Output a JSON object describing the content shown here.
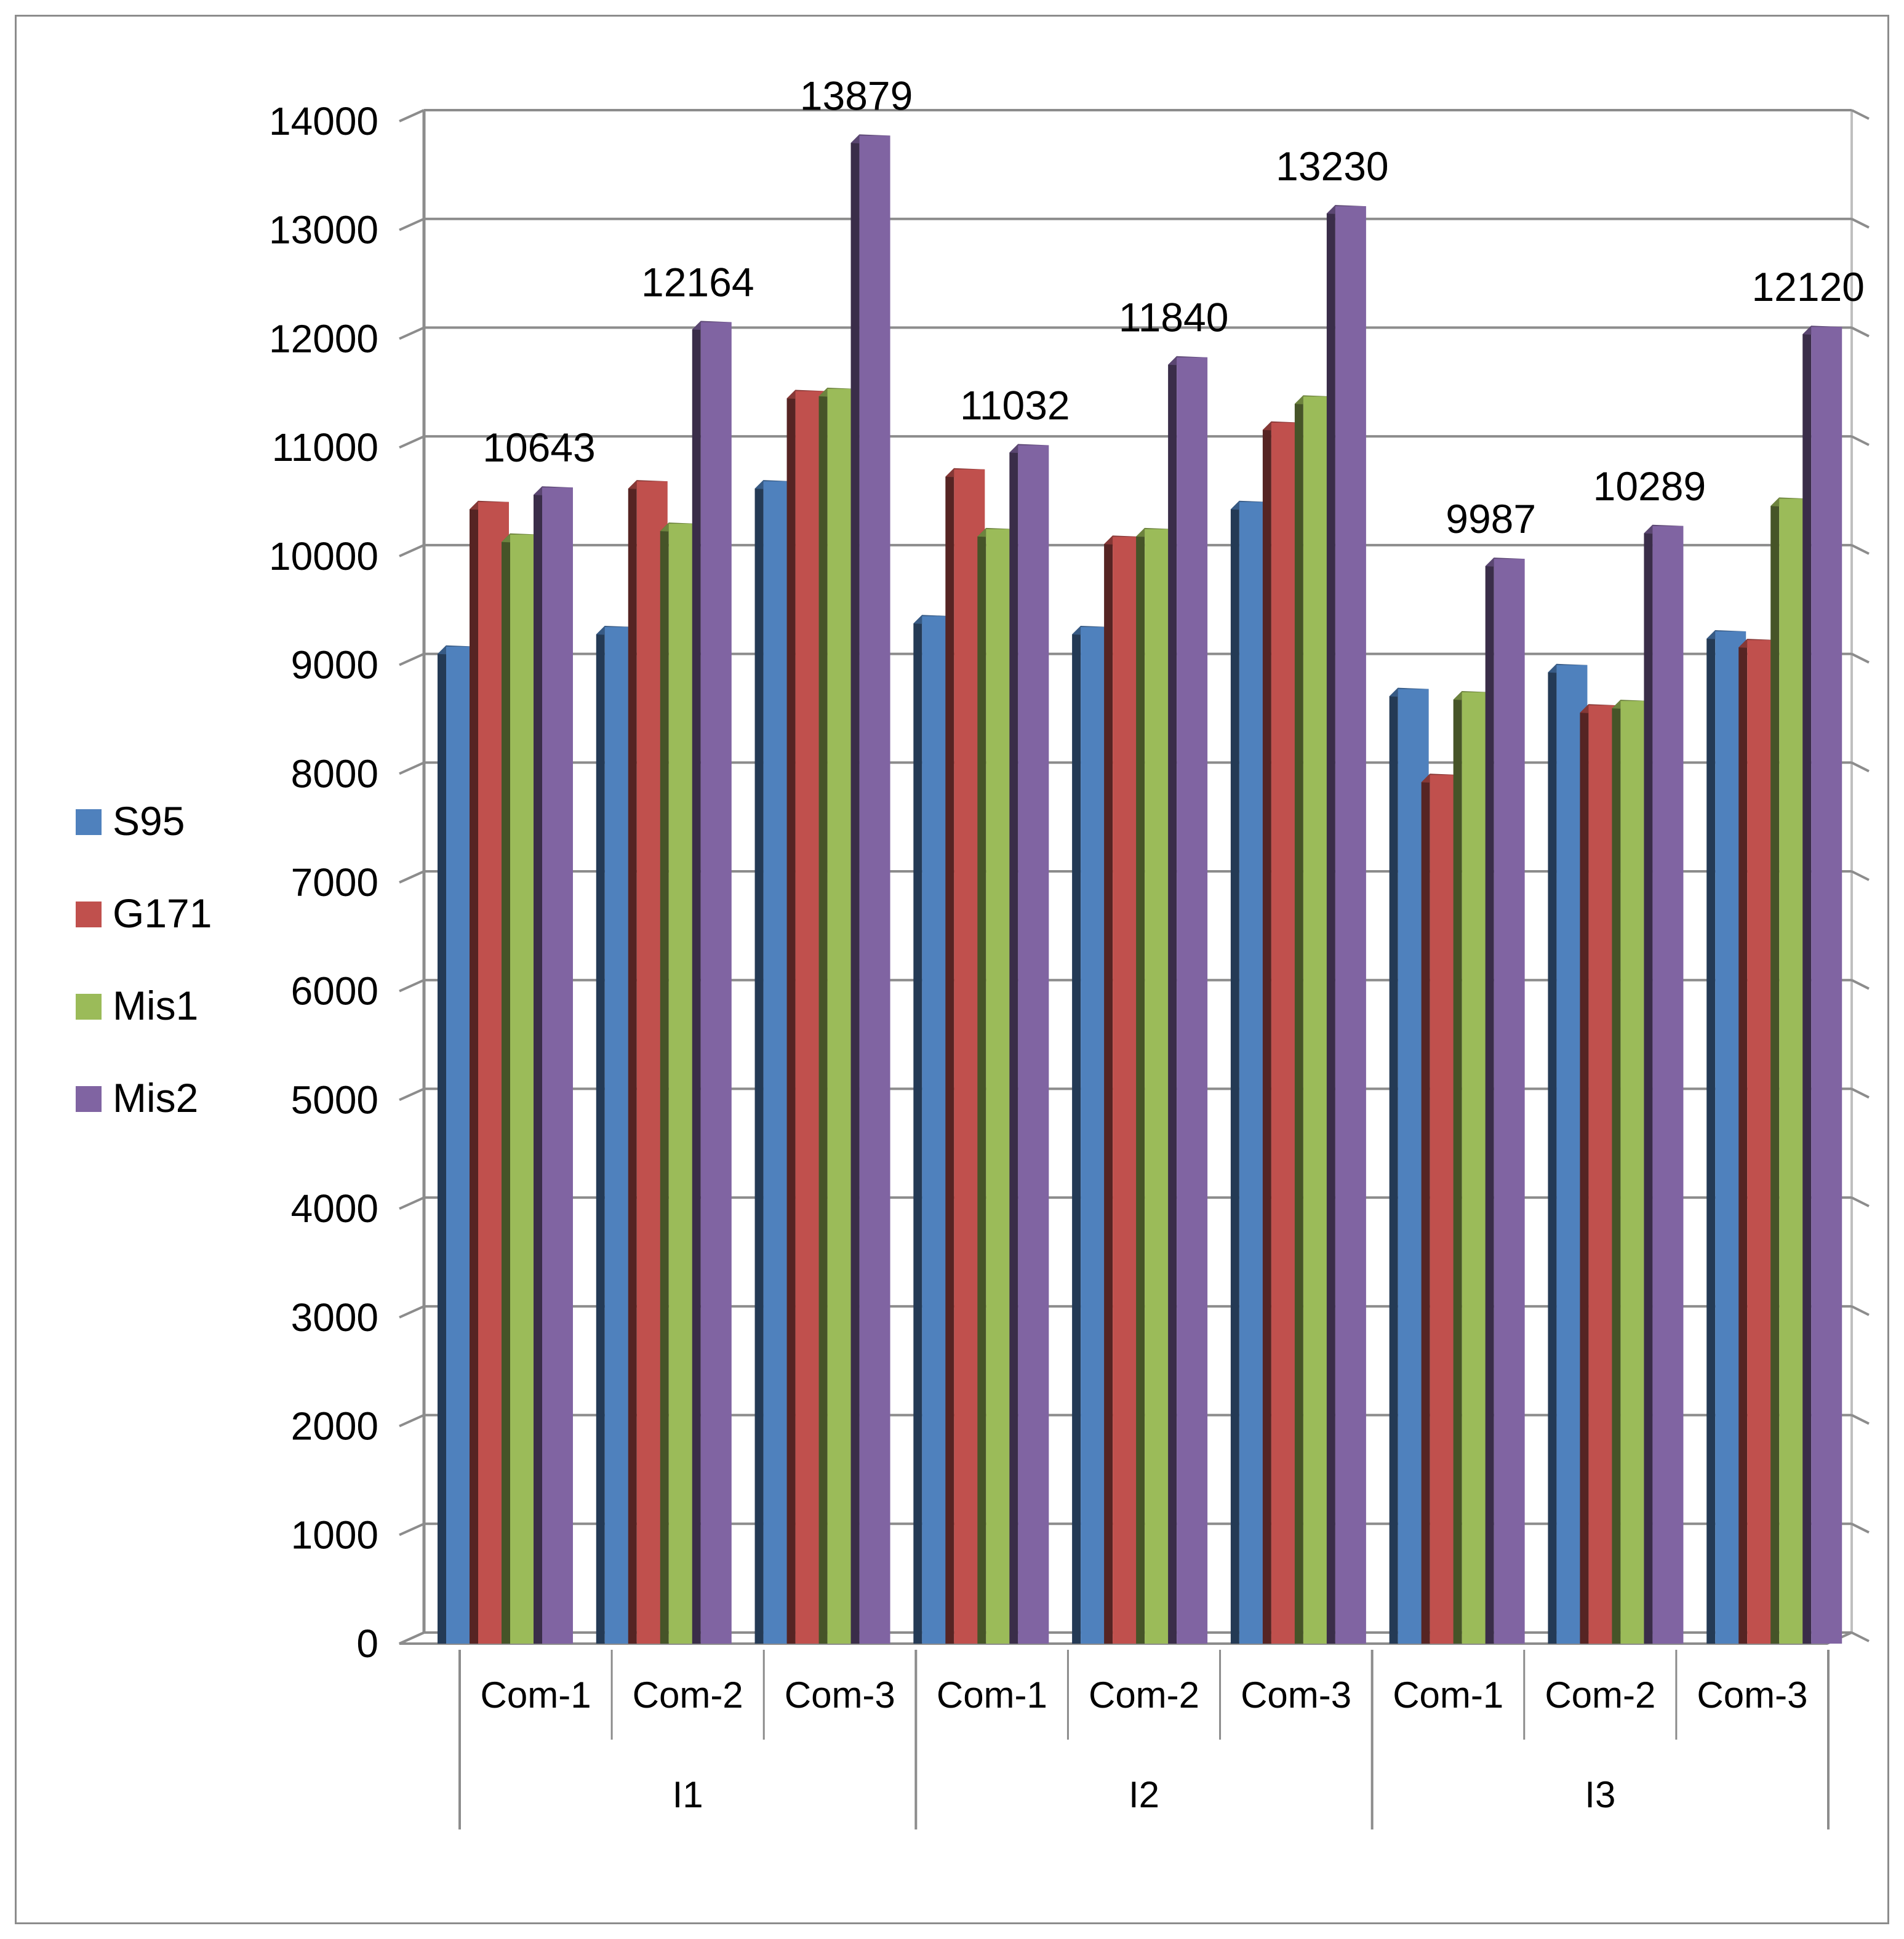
{
  "chart_data": {
    "type": "bar",
    "style": "3d-clustered-column",
    "title": "",
    "xlabel": "",
    "ylabel": "",
    "ylim": [
      0,
      14000
    ],
    "y_ticks": [
      "0",
      "1000",
      "2000",
      "3000",
      "4000",
      "5000",
      "6000",
      "7000",
      "8000",
      "9000",
      "10000",
      "11000",
      "12000",
      "13000",
      "14000"
    ],
    "grid": true,
    "legend_position": "left",
    "groups": [
      {
        "label": "I1",
        "categories": [
          "Com-1",
          "Com-2",
          "Com-3"
        ]
      },
      {
        "label": "I2",
        "categories": [
          "Com-1",
          "Com-2",
          "Com-3"
        ]
      },
      {
        "label": "I3",
        "categories": [
          "Com-1",
          "Com-2",
          "Com-3"
        ]
      }
    ],
    "series": [
      {
        "name": "S95",
        "color": "#4f81bd",
        "values": [
          9180,
          9360,
          10700,
          9460,
          9360,
          10510,
          8790,
          9010,
          9320
        ]
      },
      {
        "name": "G171",
        "color": "#c0504d",
        "values": [
          10510,
          10700,
          11530,
          10810,
          10190,
          11240,
          8000,
          8640,
          9240
        ]
      },
      {
        "name": "Mis1",
        "color": "#9bbb59",
        "values": [
          10210,
          10310,
          11550,
          10260,
          10260,
          11480,
          8760,
          8680,
          10540
        ]
      },
      {
        "name": "Mis2",
        "color": "#8064a2",
        "values": [
          10643,
          12164,
          13879,
          11032,
          11840,
          13230,
          9987,
          10289,
          12120
        ]
      }
    ],
    "data_labels": [
      "10643",
      "12164",
      "13879",
      "11032",
      "11840",
      "13230",
      "9987",
      "10289",
      "12120"
    ]
  }
}
